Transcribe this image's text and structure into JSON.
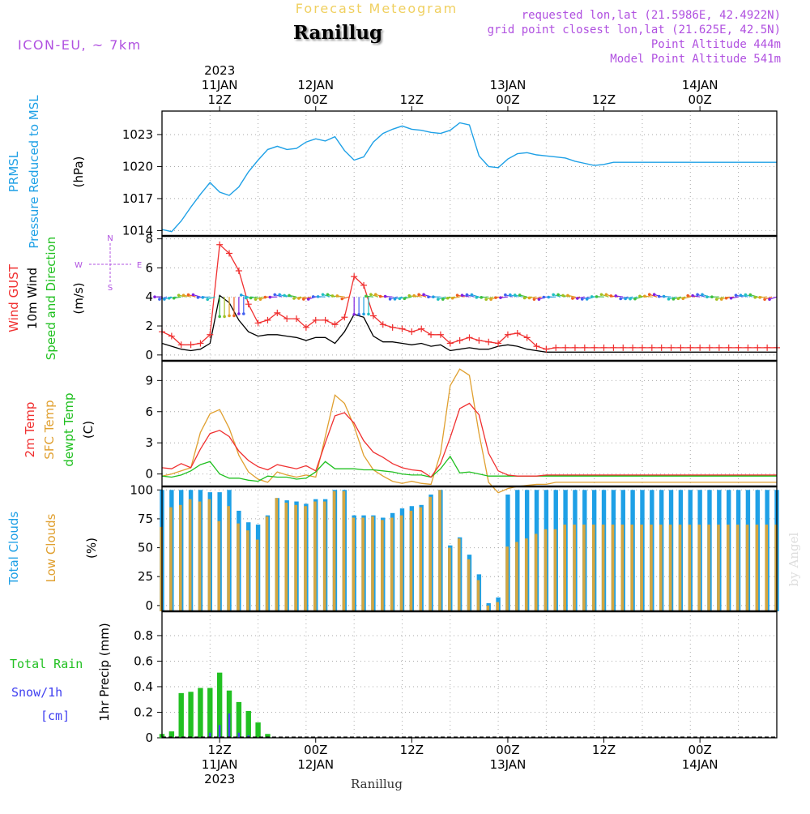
{
  "header": {
    "title": "Forecast Meteogram",
    "location": "Ranillug",
    "model": "ICON-EU, ~ 7km",
    "requested": "requested lon,lat (21.5986E, 42.4922N)",
    "gridpoint": "grid point closest lon,lat (21.625E, 42.5N)",
    "point_alt": "Point Altitude 444m",
    "model_alt": "Model Point Altitude 541m",
    "watermark": "by Angel",
    "footer": "Ranillug"
  },
  "colors": {
    "pressure": "#1ea0e6",
    "gust": "#f03030",
    "wind": "#000000",
    "t2m": "#f03030",
    "sfc": "#e0a030",
    "dew": "#20c020",
    "total_clouds": "#1ea0e6",
    "low_clouds": "#d4a640",
    "rain": "#22c022",
    "snow": "#4040f0",
    "purple": "#b050e0",
    "yellow": "#f0d060"
  },
  "time_axis": {
    "hours_start": 6,
    "hours_end": 70,
    "top_labels": [
      {
        "h": 12,
        "lines": [
          "2023",
          "11JAN",
          "12Z"
        ]
      },
      {
        "h": 22,
        "lines": [
          "12JAN",
          "00Z"
        ]
      },
      {
        "h": 32,
        "lines": [
          "12Z"
        ]
      },
      {
        "h": 42,
        "lines": [
          "13JAN",
          "00Z"
        ]
      },
      {
        "h": 52,
        "lines": [
          "12Z"
        ]
      },
      {
        "h": 62,
        "lines": [
          "14JAN",
          "00Z"
        ]
      }
    ],
    "bottom_labels": [
      {
        "h": 12,
        "lines": [
          "12Z",
          "11JAN",
          "2023"
        ]
      },
      {
        "h": 22,
        "lines": [
          "00Z",
          "12JAN"
        ]
      },
      {
        "h": 32,
        "lines": [
          "12Z"
        ]
      },
      {
        "h": 42,
        "lines": [
          "00Z",
          "13JAN"
        ]
      },
      {
        "h": 52,
        "lines": [
          "12Z"
        ]
      },
      {
        "h": 62,
        "lines": [
          "00Z",
          "14JAN"
        ]
      }
    ]
  },
  "panels": {
    "pressure": {
      "labels": [
        "PRMSL",
        "Pressure Reduced to MSL"
      ],
      "unit": "(hPa)",
      "ticks": [
        "1014",
        "1017",
        "1020",
        "1023"
      ]
    },
    "wind": {
      "labels": [
        "Wind GUST",
        "10m Wind",
        "Speed and Direction"
      ],
      "unit": "(m/s)",
      "compass": [
        "N",
        "W",
        "E",
        "S"
      ],
      "ticks": [
        "0",
        "2",
        "4",
        "6",
        "8"
      ]
    },
    "temp": {
      "labels": [
        "2m Temp",
        "SFC Temp",
        "dewpt Temp"
      ],
      "unit": "(C)",
      "ticks": [
        "0",
        "3",
        "6",
        "9"
      ]
    },
    "clouds": {
      "labels": [
        "Total Clouds",
        "Low Clouds"
      ],
      "unit": "(%)",
      "ticks": [
        "0",
        "25",
        "50",
        "75",
        "100"
      ]
    },
    "precip": {
      "labels": [
        "Total  Rain",
        "Snow/1h",
        "[cm]"
      ],
      "unit": "1hr Precip (mm)",
      "ticks": [
        "0",
        "0.2",
        "0.4",
        "0.6",
        "0.8"
      ]
    }
  },
  "chart_data": [
    {
      "type": "line",
      "title": "PRMSL Pressure Reduced to MSL",
      "ylabel": "hPa",
      "ylim": [
        1013.5,
        1025.2
      ],
      "x": [
        6,
        7,
        8,
        9,
        10,
        11,
        12,
        13,
        14,
        15,
        16,
        17,
        18,
        19,
        20,
        21,
        22,
        23,
        24,
        25,
        26,
        27,
        28,
        29,
        30,
        31,
        32,
        33,
        34,
        35,
        36,
        37,
        38,
        39,
        40,
        41,
        42,
        43,
        44,
        45,
        46,
        47,
        48,
        49,
        50,
        51,
        52,
        53,
        54,
        55,
        56,
        57,
        58,
        59,
        60,
        61,
        62,
        63,
        64,
        65,
        66,
        67,
        68,
        69,
        70
      ],
      "series": [
        {
          "name": "PRMSL",
          "values": [
            1014.1,
            1013.9,
            1014.9,
            1016.2,
            1017.4,
            1018.5,
            1017.6,
            1017.3,
            1018.1,
            1019.5,
            1020.6,
            1021.6,
            1021.9,
            1021.6,
            1021.7,
            1022.3,
            1022.6,
            1022.4,
            1022.8,
            1021.5,
            1020.6,
            1020.9,
            1022.3,
            1023.1,
            1023.5,
            1023.8,
            1023.5,
            1023.4,
            1023.2,
            1023.1,
            1023.4,
            1024.1,
            1023.9,
            1021.0,
            1020.0,
            1019.9,
            1020.7,
            1021.2,
            1021.3,
            1021.1,
            1021.0,
            1020.9,
            1020.8,
            1020.5,
            1020.3,
            1020.1,
            1020.2,
            1020.4,
            1020.4,
            1020.4,
            1020.4,
            1020.4,
            1020.4,
            1020.4,
            1020.4,
            1020.4,
            1020.4,
            1020.4,
            1020.4,
            1020.4,
            1020.4,
            1020.4,
            1020.4,
            1020.4,
            1020.4
          ]
        }
      ]
    },
    {
      "type": "line",
      "title": "Wind GUST / 10m Wind Speed and Direction",
      "ylabel": "m/s",
      "ylim": [
        -0.4,
        8.2
      ],
      "x": [
        6,
        7,
        8,
        9,
        10,
        11,
        12,
        13,
        14,
        15,
        16,
        17,
        18,
        19,
        20,
        21,
        22,
        23,
        24,
        25,
        26,
        27,
        28,
        29,
        30,
        31,
        32,
        33,
        34,
        35,
        36,
        37,
        38,
        39,
        40,
        41,
        42,
        43,
        44,
        45,
        46,
        47,
        48,
        49,
        50,
        51,
        52,
        53,
        54,
        55,
        56,
        57,
        58,
        59,
        60,
        61,
        62,
        63,
        64,
        65,
        66,
        67,
        68,
        69,
        70
      ],
      "series": [
        {
          "name": "Wind GUST",
          "values": [
            1.6,
            1.3,
            0.7,
            0.7,
            0.8,
            1.4,
            7.6,
            7.0,
            5.8,
            3.5,
            2.2,
            2.4,
            2.9,
            2.5,
            2.5,
            1.9,
            2.4,
            2.4,
            2.1,
            2.6,
            5.4,
            4.8,
            2.7,
            2.1,
            1.9,
            1.8,
            1.6,
            1.8,
            1.4,
            1.4,
            0.8,
            1.0,
            1.2,
            1.0,
            0.9,
            0.8,
            1.4,
            1.5,
            1.2,
            0.6,
            0.4,
            0.5,
            0.5,
            0.5,
            0.5,
            0.5,
            0.5,
            0.5,
            0.5,
            0.5,
            0.5,
            0.5,
            0.5,
            0.5,
            0.5,
            0.5,
            0.5,
            0.5,
            0.5,
            0.5,
            0.5,
            0.5,
            0.5,
            0.5,
            0.5
          ]
        },
        {
          "name": "10m Wind",
          "values": [
            0.8,
            0.6,
            0.4,
            0.3,
            0.4,
            0.8,
            4.1,
            3.6,
            2.4,
            1.6,
            1.3,
            1.4,
            1.4,
            1.3,
            1.2,
            1.0,
            1.2,
            1.2,
            0.8,
            1.6,
            2.8,
            2.6,
            1.3,
            0.9,
            0.9,
            0.8,
            0.7,
            0.8,
            0.6,
            0.7,
            0.3,
            0.4,
            0.5,
            0.4,
            0.4,
            0.6,
            0.7,
            0.6,
            0.4,
            0.3,
            0.2,
            0.2,
            0.2,
            0.2,
            0.2,
            0.2,
            0.2,
            0.2,
            0.2,
            0.2,
            0.2,
            0.2,
            0.2,
            0.2,
            0.2,
            0.2,
            0.2,
            0.2,
            0.2,
            0.2,
            0.2,
            0.2,
            0.2,
            0.2,
            0.2
          ]
        }
      ]
    },
    {
      "type": "line",
      "title": "2m Temp / SFC Temp / dewpt Temp",
      "ylabel": "C",
      "ylim": [
        -1.2,
        10.9
      ],
      "x": [
        6,
        7,
        8,
        9,
        10,
        11,
        12,
        13,
        14,
        15,
        16,
        17,
        18,
        19,
        20,
        21,
        22,
        23,
        24,
        25,
        26,
        27,
        28,
        29,
        30,
        31,
        32,
        33,
        34,
        35,
        36,
        37,
        38,
        39,
        40,
        41,
        42,
        43,
        44,
        45,
        46,
        47,
        48,
        49,
        50,
        51,
        52,
        53,
        54,
        55,
        56,
        57,
        58,
        59,
        60,
        61,
        62,
        63,
        64,
        65,
        66,
        67,
        68,
        69,
        70
      ],
      "series": [
        {
          "name": "2m Temp",
          "values": [
            0.6,
            0.5,
            1.0,
            0.6,
            2.4,
            3.9,
            4.2,
            3.6,
            2.2,
            1.3,
            0.7,
            0.4,
            0.9,
            0.7,
            0.5,
            0.8,
            0.3,
            3.0,
            5.6,
            5.9,
            4.9,
            3.2,
            2.1,
            1.6,
            1.0,
            0.6,
            0.4,
            0.3,
            -0.3,
            1.0,
            3.5,
            6.3,
            6.8,
            5.7,
            2.0,
            0.3,
            -0.1,
            -0.2,
            -0.2,
            -0.2,
            -0.1,
            -0.1,
            -0.1,
            -0.1,
            -0.1,
            -0.1,
            -0.1,
            -0.1,
            -0.1,
            -0.1,
            -0.1,
            -0.1,
            -0.1,
            -0.1,
            -0.1,
            -0.1,
            -0.1,
            -0.1,
            -0.1,
            -0.1,
            -0.1,
            -0.1,
            -0.1,
            -0.1,
            -0.1
          ]
        },
        {
          "name": "SFC Temp",
          "values": [
            -0.2,
            0.0,
            0.3,
            0.6,
            4.0,
            5.8,
            6.2,
            4.4,
            1.8,
            0.2,
            -0.5,
            -0.8,
            0.2,
            -0.1,
            -0.3,
            -0.1,
            -0.3,
            3.6,
            7.6,
            6.8,
            4.6,
            1.8,
            0.4,
            -0.2,
            -0.7,
            -0.9,
            -0.7,
            -0.9,
            -1.0,
            2.0,
            8.5,
            10.1,
            9.5,
            3.9,
            -0.8,
            -1.8,
            -1.4,
            -1.2,
            -1.1,
            -1.0,
            -1.0,
            -0.8,
            -0.8,
            -0.8,
            -0.8,
            -0.8,
            -0.8,
            -0.8,
            -0.8,
            -0.8,
            -0.8,
            -0.8,
            -0.8,
            -0.8,
            -0.8,
            -0.8,
            -0.8,
            -0.8,
            -0.8,
            -0.8,
            -0.8,
            -0.8,
            -0.8,
            -0.8,
            -0.8
          ]
        },
        {
          "name": "dewpt Temp",
          "values": [
            -0.2,
            -0.3,
            -0.1,
            0.3,
            0.9,
            1.2,
            0.0,
            -0.4,
            -0.4,
            -0.6,
            -0.7,
            -0.2,
            -0.3,
            -0.3,
            -0.5,
            -0.4,
            0.2,
            1.2,
            0.5,
            0.5,
            0.5,
            0.4,
            0.4,
            0.3,
            0.2,
            0.0,
            -0.1,
            -0.1,
            -0.3,
            0.5,
            1.7,
            0.1,
            0.2,
            0.0,
            -0.2,
            -0.2,
            -0.2,
            -0.2,
            -0.2,
            -0.2,
            -0.2,
            -0.2,
            -0.2,
            -0.2,
            -0.2,
            -0.2,
            -0.2,
            -0.2,
            -0.2,
            -0.2,
            -0.2,
            -0.2,
            -0.2,
            -0.2,
            -0.2,
            -0.2,
            -0.2,
            -0.2,
            -0.2,
            -0.2,
            -0.2,
            -0.2,
            -0.2,
            -0.2,
            -0.2
          ]
        }
      ]
    },
    {
      "type": "bar",
      "title": "Total Clouds / Low Clouds",
      "ylabel": "%",
      "ylim": [
        -5,
        103
      ],
      "x": [
        6,
        7,
        8,
        9,
        10,
        11,
        12,
        13,
        14,
        15,
        16,
        17,
        18,
        19,
        20,
        21,
        22,
        23,
        24,
        25,
        26,
        27,
        28,
        29,
        30,
        31,
        32,
        33,
        34,
        35,
        36,
        37,
        38,
        39,
        40,
        41,
        42,
        43,
        44,
        45,
        46,
        47,
        48,
        49,
        50,
        51,
        52,
        53,
        54,
        55,
        56,
        57,
        58,
        59,
        60,
        61,
        62,
        63,
        64,
        65,
        66,
        67,
        68,
        69,
        70
      ],
      "series": [
        {
          "name": "Total Clouds",
          "values": [
            100,
            100,
            100,
            100,
            100,
            98,
            98,
            100,
            82,
            72,
            70,
            78,
            93,
            91,
            90,
            88,
            92,
            92,
            100,
            100,
            78,
            78,
            78,
            76,
            80,
            84,
            86,
            87,
            96,
            100,
            52,
            59,
            44,
            27,
            2,
            7,
            96,
            100,
            100,
            100,
            100,
            100,
            100,
            100,
            100,
            100,
            100,
            100,
            100,
            100,
            100,
            100,
            100,
            100,
            100,
            100,
            100,
            100,
            100,
            100,
            100,
            100,
            100,
            100,
            100
          ]
        },
        {
          "name": "Low Clouds",
          "values": [
            68,
            85,
            87,
            92,
            90,
            92,
            73,
            86,
            71,
            65,
            57,
            77,
            93,
            89,
            87,
            86,
            90,
            90,
            99,
            99,
            76,
            76,
            77,
            74,
            76,
            78,
            82,
            85,
            94,
            100,
            50,
            58,
            40,
            22,
            0,
            3,
            51,
            55,
            58,
            62,
            66,
            66,
            70,
            70,
            70,
            70,
            70,
            70,
            70,
            70,
            70,
            70,
            70,
            70,
            70,
            70,
            70,
            70,
            70,
            70,
            70,
            70,
            70,
            70,
            70
          ]
        }
      ]
    },
    {
      "type": "bar",
      "title": "1hr Precip",
      "ylabel": "1hr Precip (mm)",
      "ylim": [
        0,
        0.99
      ],
      "x": [
        6,
        7,
        8,
        9,
        10,
        11,
        12,
        13,
        14,
        15,
        16,
        17,
        18,
        19,
        20,
        21,
        22,
        23,
        24,
        25,
        26,
        27,
        28,
        29,
        30,
        31,
        32,
        33,
        34,
        35,
        36,
        37,
        38,
        39,
        40,
        41,
        42,
        43,
        44,
        45,
        46,
        47,
        48,
        49,
        50,
        51,
        52,
        53,
        54,
        55,
        56,
        57,
        58,
        59,
        60,
        61,
        62,
        63,
        64,
        65,
        66,
        67,
        68,
        69,
        70
      ],
      "series": [
        {
          "name": "Total Rain",
          "values": [
            0.03,
            0.05,
            0.35,
            0.36,
            0.39,
            0.39,
            0.51,
            0.37,
            0.28,
            0.21,
            0.12,
            0.03,
            0,
            0,
            0,
            0,
            0,
            0,
            0,
            0,
            0,
            0,
            0,
            0,
            0,
            0,
            0,
            0,
            0,
            0,
            0,
            0,
            0,
            0,
            0,
            0,
            0,
            0,
            0,
            0,
            0,
            0,
            0,
            0,
            0,
            0,
            0,
            0,
            0,
            0,
            0,
            0,
            0,
            0,
            0,
            0,
            0,
            0,
            0,
            0,
            0,
            0,
            0,
            0,
            0
          ]
        },
        {
          "name": "Snow/1h",
          "values": [
            0,
            0,
            0,
            0,
            0,
            0.04,
            0.1,
            0.19,
            0.04,
            0.02,
            0,
            0,
            0,
            0,
            0,
            0,
            0,
            0,
            0,
            0,
            0,
            0,
            0,
            0,
            0,
            0,
            0,
            0,
            0,
            0,
            0,
            0,
            0,
            0,
            0,
            0,
            0,
            0,
            0,
            0,
            0,
            0,
            0,
            0,
            0,
            0,
            0,
            0,
            0,
            0,
            0,
            0,
            0,
            0,
            0,
            0,
            0,
            0,
            0,
            0,
            0,
            0,
            0,
            0,
            0
          ]
        }
      ]
    }
  ]
}
